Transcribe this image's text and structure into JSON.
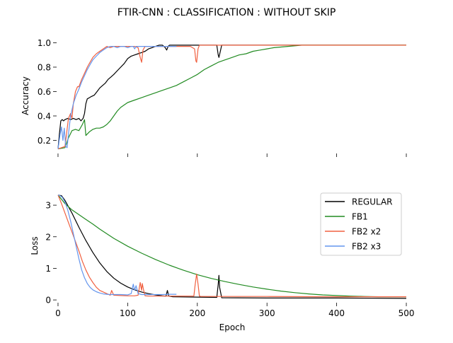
{
  "chart_data": {
    "title": "FTIR-CNN : CLASSIFICATION : WITHOUT SKIP",
    "type": "line",
    "xlabel": "Epoch",
    "colors": {
      "REGULAR": "#000000",
      "FB1": "#228b22",
      "FB2 x2": "#f06040",
      "FB2 x3": "#6495ed"
    },
    "panels": [
      {
        "id": "accuracy",
        "ylabel": "Accuracy",
        "xlim": [
          -2,
          502
        ],
        "ylim": [
          0.11,
          1.02
        ],
        "xticks": [
          0,
          100,
          200,
          300,
          400,
          500
        ],
        "xtick_labels": [],
        "yticks": [
          0.2,
          0.4,
          0.6,
          0.8,
          1.0
        ],
        "ytick_labels": [
          "0.2",
          "0.4",
          "0.6",
          "0.8",
          "1.0"
        ],
        "series": [
          {
            "name": "REGULAR",
            "x": [
              0,
              2,
              4,
              6,
              8,
              10,
              14,
              18,
              22,
              26,
              30,
              33,
              36,
              38,
              40,
              42,
              45,
              48,
              52,
              56,
              60,
              64,
              68,
              72,
              76,
              80,
              85,
              90,
              95,
              100,
              105,
              110,
              115,
              120,
              125,
              130,
              135,
              140,
              145,
              150,
              154,
              156,
              158,
              160,
              170,
              200,
              228,
              230,
              231,
              233,
              235,
              240,
              300,
              400,
              500
            ],
            "y": [
              0.13,
              0.25,
              0.36,
              0.37,
              0.36,
              0.37,
              0.38,
              0.37,
              0.38,
              0.37,
              0.38,
              0.36,
              0.38,
              0.42,
              0.5,
              0.54,
              0.55,
              0.56,
              0.57,
              0.6,
              0.63,
              0.65,
              0.67,
              0.7,
              0.72,
              0.74,
              0.77,
              0.8,
              0.83,
              0.87,
              0.89,
              0.9,
              0.91,
              0.92,
              0.93,
              0.95,
              0.96,
              0.97,
              0.98,
              0.98,
              0.96,
              0.94,
              0.97,
              0.98,
              0.98,
              0.98,
              0.98,
              0.9,
              0.88,
              0.93,
              0.98,
              0.98,
              0.98,
              0.98,
              0.98
            ]
          },
          {
            "name": "FB1",
            "x": [
              0,
              10,
              15,
              20,
              25,
              30,
              35,
              38,
              40,
              45,
              50,
              55,
              60,
              65,
              70,
              75,
              80,
              85,
              90,
              95,
              100,
              110,
              120,
              130,
              140,
              150,
              160,
              170,
              180,
              190,
              200,
              210,
              220,
              230,
              240,
              250,
              260,
              270,
              280,
              290,
              300,
              310,
              320,
              330,
              340,
              350,
              400,
              500
            ],
            "y": [
              0.13,
              0.14,
              0.22,
              0.28,
              0.29,
              0.28,
              0.33,
              0.37,
              0.24,
              0.27,
              0.29,
              0.3,
              0.3,
              0.31,
              0.33,
              0.36,
              0.4,
              0.44,
              0.47,
              0.49,
              0.51,
              0.53,
              0.55,
              0.57,
              0.59,
              0.61,
              0.63,
              0.65,
              0.68,
              0.71,
              0.74,
              0.78,
              0.81,
              0.84,
              0.86,
              0.88,
              0.9,
              0.91,
              0.93,
              0.94,
              0.95,
              0.96,
              0.965,
              0.97,
              0.975,
              0.98,
              0.98,
              0.98
            ]
          },
          {
            "name": "FB2 x2",
            "x": [
              0,
              5,
              10,
              15,
              18,
              20,
              22,
              25,
              28,
              30,
              34,
              38,
              42,
              46,
              50,
              55,
              60,
              65,
              70,
              75,
              80,
              90,
              100,
              110,
              115,
              118,
              120,
              122,
              125,
              130,
              160,
              190,
              196,
              198,
              199,
              201,
              203,
              210,
              300,
              400,
              500
            ],
            "y": [
              0.13,
              0.14,
              0.15,
              0.38,
              0.42,
              0.38,
              0.5,
              0.6,
              0.64,
              0.64,
              0.7,
              0.75,
              0.8,
              0.84,
              0.88,
              0.91,
              0.93,
              0.95,
              0.97,
              0.96,
              0.97,
              0.97,
              0.97,
              0.97,
              0.96,
              0.88,
              0.84,
              0.94,
              0.97,
              0.97,
              0.97,
              0.97,
              0.95,
              0.85,
              0.84,
              0.95,
              0.98,
              0.98,
              0.98,
              0.98,
              0.98
            ]
          },
          {
            "name": "FB2 x3",
            "x": [
              0,
              3,
              5,
              7,
              9,
              11,
              13,
              15,
              18,
              22,
              26,
              30,
              34,
              38,
              42,
              46,
              50,
              55,
              60,
              65,
              70,
              75,
              80,
              85,
              90,
              95,
              100,
              105,
              108,
              110,
              112,
              120,
              130,
              140,
              150,
              160,
              170
            ],
            "y": [
              0.13,
              0.25,
              0.31,
              0.2,
              0.3,
              0.15,
              0.14,
              0.25,
              0.4,
              0.5,
              0.57,
              0.62,
              0.68,
              0.73,
              0.78,
              0.82,
              0.86,
              0.89,
              0.92,
              0.94,
              0.96,
              0.97,
              0.97,
              0.96,
              0.97,
              0.97,
              0.96,
              0.97,
              0.97,
              0.95,
              0.97,
              0.97,
              0.97,
              0.97,
              0.97,
              0.97,
              0.97
            ]
          }
        ]
      },
      {
        "id": "loss",
        "ylabel": "Loss",
        "xlim": [
          -2,
          502
        ],
        "ylim": [
          -0.02,
          3.45
        ],
        "xticks": [
          0,
          100,
          200,
          300,
          400,
          500
        ],
        "xtick_labels": [
          "0",
          "100",
          "200",
          "300",
          "400",
          "500"
        ],
        "yticks": [
          0,
          1,
          2,
          3
        ],
        "ytick_labels": [
          "0",
          "1",
          "2",
          "3"
        ],
        "series": [
          {
            "name": "REGULAR",
            "x": [
              0,
              5,
              10,
              20,
              30,
              40,
              50,
              60,
              70,
              80,
              90,
              100,
              110,
              120,
              130,
              140,
              150,
              155,
              157,
              159,
              165,
              200,
              228,
              230,
              231,
              232,
              235,
              300,
              400,
              500
            ],
            "y": [
              3.32,
              3.3,
              3.15,
              2.75,
              2.3,
              1.88,
              1.5,
              1.17,
              0.9,
              0.69,
              0.53,
              0.41,
              0.32,
              0.25,
              0.2,
              0.16,
              0.13,
              0.12,
              0.3,
              0.12,
              0.1,
              0.09,
              0.08,
              0.5,
              0.78,
              0.4,
              0.07,
              0.06,
              0.06,
              0.05
            ]
          },
          {
            "name": "FB1",
            "x": [
              0,
              10,
              20,
              30,
              40,
              50,
              60,
              80,
              100,
              120,
              140,
              160,
              180,
              200,
              220,
              240,
              260,
              280,
              300,
              320,
              340,
              360,
              380,
              400,
              420,
              440,
              460,
              480,
              500
            ],
            "y": [
              3.32,
              3.05,
              2.85,
              2.7,
              2.55,
              2.4,
              2.24,
              1.95,
              1.7,
              1.48,
              1.28,
              1.1,
              0.94,
              0.8,
              0.68,
              0.58,
              0.49,
              0.41,
              0.34,
              0.28,
              0.23,
              0.19,
              0.16,
              0.14,
              0.12,
              0.11,
              0.1,
              0.1,
              0.1
            ]
          },
          {
            "name": "FB2 x2",
            "x": [
              0,
              5,
              10,
              15,
              20,
              25,
              30,
              35,
              40,
              45,
              50,
              55,
              60,
              70,
              75,
              77,
              80,
              90,
              100,
              110,
              115,
              118,
              120,
              121,
              123,
              125,
              130,
              160,
              195,
              197,
              199,
              201,
              203,
              205,
              210,
              300,
              400,
              500
            ],
            "y": [
              3.32,
              3.05,
              2.75,
              2.45,
              2.15,
              1.85,
              1.55,
              1.22,
              0.95,
              0.72,
              0.55,
              0.4,
              0.3,
              0.2,
              0.15,
              0.3,
              0.15,
              0.14,
              0.13,
              0.13,
              0.15,
              0.55,
              0.3,
              0.52,
              0.3,
              0.13,
              0.12,
              0.12,
              0.12,
              0.5,
              0.82,
              0.5,
              0.12,
              0.11,
              0.11,
              0.11,
              0.1,
              0.1
            ]
          },
          {
            "name": "FB2 x3",
            "x": [
              0,
              3,
              6,
              10,
              14,
              18,
              22,
              26,
              30,
              34,
              38,
              42,
              46,
              50,
              55,
              60,
              65,
              70,
              75,
              80,
              90,
              100,
              105,
              108,
              110,
              112,
              115,
              120,
              130,
              140,
              150,
              160,
              170
            ],
            "y": [
              3.32,
              3.3,
              3.25,
              3.1,
              2.85,
              2.5,
              2.1,
              1.7,
              1.3,
              0.95,
              0.7,
              0.52,
              0.4,
              0.32,
              0.26,
              0.22,
              0.19,
              0.18,
              0.17,
              0.17,
              0.17,
              0.16,
              0.2,
              0.5,
              0.3,
              0.45,
              0.2,
              0.17,
              0.17,
              0.17,
              0.17,
              0.18,
              0.18
            ]
          }
        ]
      }
    ],
    "legend": {
      "location": "upper right (loss panel)",
      "entries": [
        "REGULAR",
        "FB1",
        "FB2 x2",
        "FB2 x3"
      ]
    }
  }
}
